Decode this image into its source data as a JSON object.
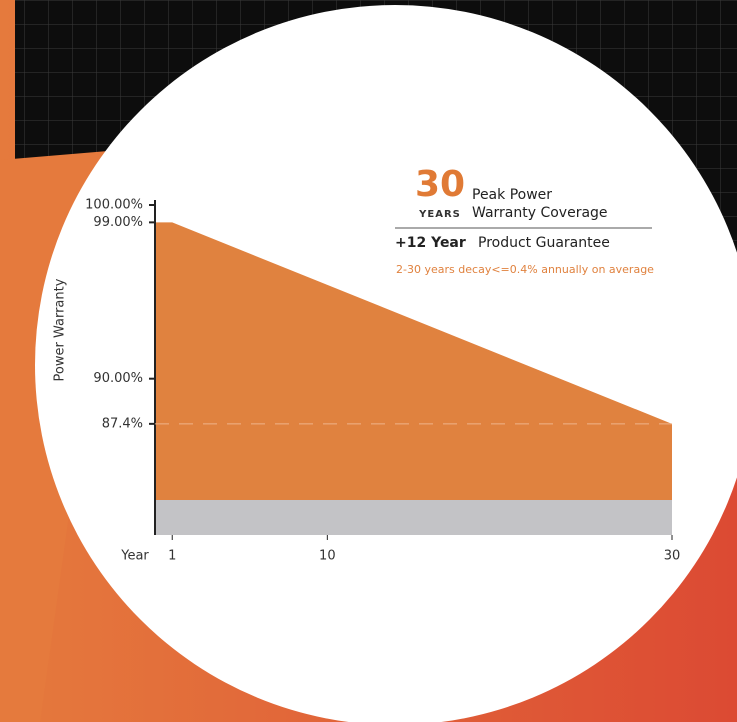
{
  "chart_data": {
    "type": "area",
    "ylabel": "Power Warranty",
    "xlabel": "Year",
    "x": [
      0,
      1,
      30
    ],
    "values": [
      99,
      99,
      87.4
    ],
    "color": "#e0823f",
    "xlim": [
      0,
      30
    ],
    "ylim": [
      81,
      100
    ],
    "xticks": [
      1,
      10,
      30
    ],
    "yticks": [
      {
        "value": 100,
        "label": "100.00%"
      },
      {
        "value": 99,
        "label": "99.00%"
      },
      {
        "value": 90,
        "label": "90.00%"
      },
      {
        "value": 87.4,
        "label": "87.4%"
      }
    ],
    "badge": {
      "number": "30",
      "unit": "YEARS",
      "line1": "Peak Power",
      "line2": "Warranty Coverage"
    },
    "guarantee": {
      "bold": "+12 Year",
      "text": "Product Guarantee"
    },
    "annotation": "2-30 years decay<=0.4% annually on average"
  }
}
